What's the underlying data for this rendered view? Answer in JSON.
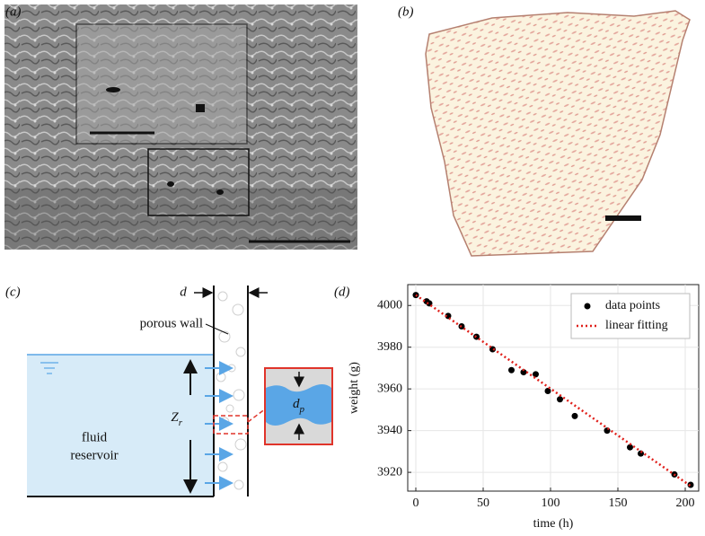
{
  "panel_labels": [
    "(a)",
    "(b)",
    "(c)",
    "(d)"
  ],
  "diagram": {
    "gap_label": "d",
    "wall_label": "porous wall",
    "height_label": {
      "symbol": "Z",
      "subscript": "r"
    },
    "reservoir_label": [
      "fluid",
      "reservoir"
    ],
    "pore_label": {
      "symbol": "d",
      "subscript": "p"
    }
  },
  "chart_data": {
    "type": "scatter",
    "xlabel": "time (h)",
    "ylabel": "weight (g)",
    "xlim": [
      -6,
      210
    ],
    "ylim": [
      3911,
      4010
    ],
    "xticks": [
      0,
      50,
      100,
      150,
      200
    ],
    "yticks": [
      3920,
      3940,
      3960,
      3980,
      4000
    ],
    "grid": true,
    "legend": "upper right",
    "series": [
      {
        "name": "data points",
        "color": "#000000",
        "mode": "markers",
        "x": [
          0,
          8,
          10,
          24,
          34,
          45,
          57,
          71,
          80,
          89,
          98,
          107,
          118,
          142,
          159,
          167,
          192,
          204
        ],
        "values": [
          4005,
          4002,
          4001,
          3995,
          3990,
          3985,
          3979,
          3969,
          3968,
          3967,
          3959,
          3955,
          3947,
          3940,
          3932,
          3929,
          3919,
          3914
        ]
      },
      {
        "name": "linear fitting",
        "color": "#e0201b",
        "mode": "dotted-line",
        "x": [
          0,
          205
        ],
        "values": [
          4005,
          3913
        ]
      }
    ]
  }
}
